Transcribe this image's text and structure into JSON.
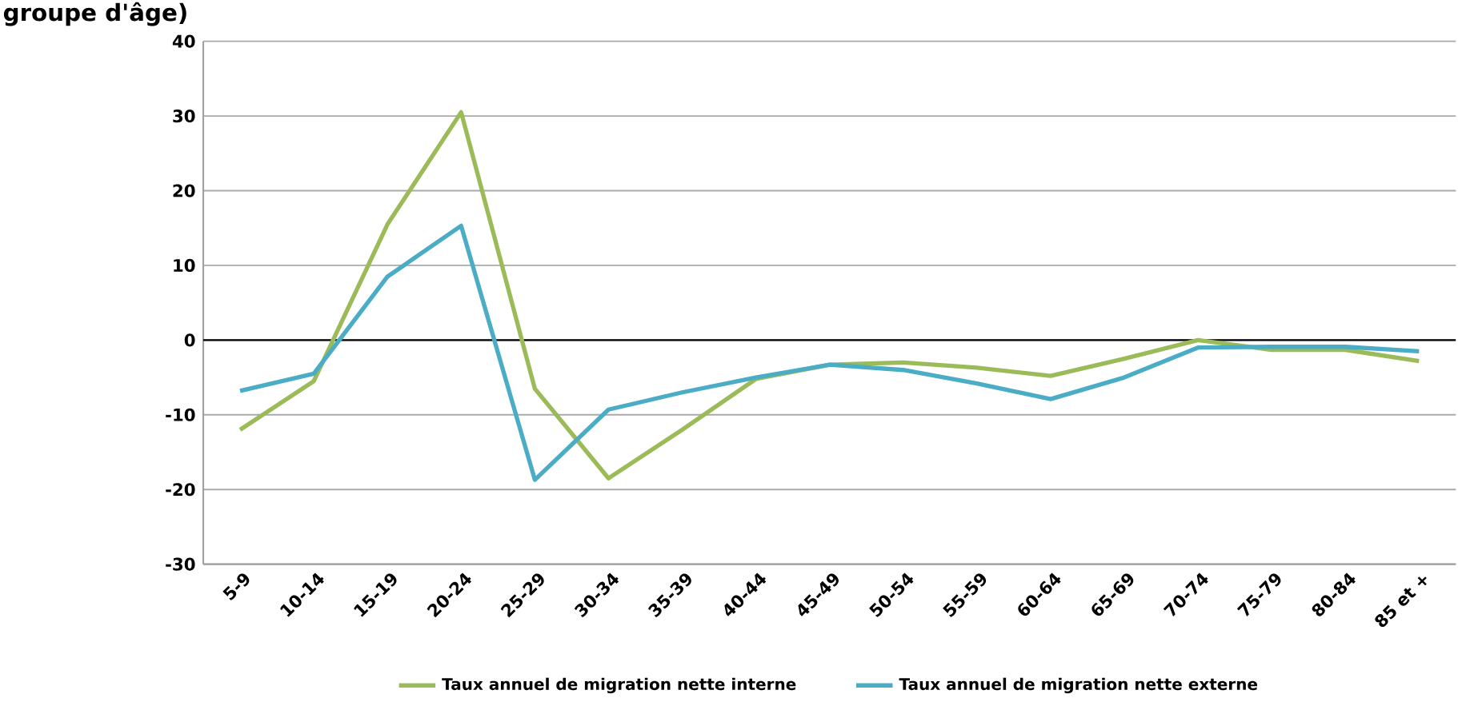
{
  "chart_data": {
    "type": "line",
    "title": "groupe d'âge)",
    "categories": [
      "5-9",
      "10-14",
      "15-19",
      "20-24",
      "25-29",
      "30-34",
      "35-39",
      "40-44",
      "45-49",
      "50-54",
      "55-59",
      "60-64",
      "65-69",
      "70-74",
      "75-79",
      "80-84",
      "85 et +"
    ],
    "series": [
      {
        "name": "Taux annuel de migration nette interne",
        "color": "#9bbb59",
        "values": [
          -12,
          -5.5,
          15.5,
          30.5,
          -6.5,
          -18.5,
          -12,
          -5.2,
          -3.3,
          -3,
          -3.7,
          -4.8,
          -2.5,
          0,
          -1.3,
          -1.3,
          -2.8
        ]
      },
      {
        "name": "Taux annuel de migration nette externe",
        "color": "#4bacc6",
        "values": [
          -6.8,
          -4.5,
          8.5,
          15.3,
          -18.7,
          -9.3,
          -7,
          -5,
          -3.3,
          -4,
          -5.8,
          -7.9,
          -5,
          -1,
          -0.9,
          -0.9,
          -1.5
        ]
      }
    ],
    "ylim": [
      -30,
      40
    ],
    "yticks": [
      -30,
      -20,
      -10,
      0,
      10,
      20,
      30,
      40
    ],
    "grid": "y",
    "legend": "bottom",
    "marker": "none",
    "line_style": "solid",
    "ref_lines": [
      {
        "axis": "y",
        "value": 0,
        "color": "#000000"
      }
    ]
  }
}
